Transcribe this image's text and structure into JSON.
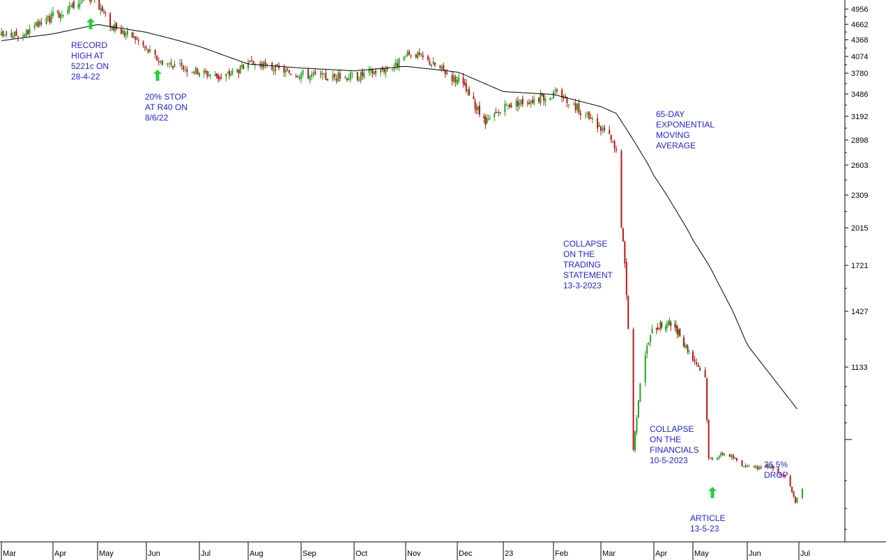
{
  "chart_data": {
    "type": "candlestick",
    "colors": {
      "up": "#1ea31e",
      "down": "#b81414",
      "ema": "#000000",
      "annotation": "#1d22e6",
      "arrow": "#22d13a"
    },
    "y_axis": {
      "ticks": [
        4956,
        4662,
        4368,
        4074,
        3780,
        3486,
        3192,
        2898,
        2603,
        2309,
        2015,
        1721,
        1427,
        1133
      ],
      "tick_labels": [
        "4956",
        "4662",
        "4368",
        "4074",
        "3780",
        "3486",
        "3192",
        "2898",
        "2603",
        "2309",
        "2015",
        "1721",
        "1427",
        "1133"
      ]
    },
    "x_axis": {
      "months": [
        "Mar",
        "Apr",
        "May",
        "Jun",
        "Jul",
        "Aug",
        "Sep",
        "Oct",
        "Nov",
        "Dec",
        "23",
        "Feb",
        "Mar",
        "Apr",
        "May",
        "Jun",
        "Jul"
      ]
    },
    "ema_label": [
      "65-DAY",
      "EXPONENTIAL",
      "MOVING",
      "AVERAGE"
    ],
    "price_path": [
      [
        "2022-03-01",
        4450
      ],
      [
        "2022-03-15",
        4480
      ],
      [
        "2022-04-01",
        4820
      ],
      [
        "2022-04-28",
        5221
      ],
      [
        "2022-05-10",
        4620
      ],
      [
        "2022-05-25",
        4400
      ],
      [
        "2022-06-08",
        4000
      ],
      [
        "2022-06-25",
        3850
      ],
      [
        "2022-07-15",
        3720
      ],
      [
        "2022-08-05",
        3950
      ],
      [
        "2022-08-25",
        3800
      ],
      [
        "2022-09-15",
        3720
      ],
      [
        "2022-10-05",
        3750
      ],
      [
        "2022-10-25",
        3900
      ],
      [
        "2022-11-05",
        4150
      ],
      [
        "2022-11-20",
        3880
      ],
      [
        "2022-12-05",
        3600
      ],
      [
        "2022-12-20",
        3100
      ],
      [
        "2023-01-05",
        3350
      ],
      [
        "2023-01-20",
        3420
      ],
      [
        "2023-02-05",
        3500
      ],
      [
        "2023-02-20",
        3200
      ],
      [
        "2023-03-05",
        2980
      ],
      [
        "2023-03-10",
        2750
      ],
      [
        "2023-03-13",
        2050
      ],
      [
        "2023-03-16",
        1550
      ],
      [
        "2023-03-20",
        700
      ],
      [
        "2023-03-25",
        1150
      ],
      [
        "2023-04-01",
        1350
      ],
      [
        "2023-04-15",
        1360
      ],
      [
        "2023-04-30",
        1200
      ],
      [
        "2023-05-08",
        1080
      ],
      [
        "2023-05-10",
        650
      ],
      [
        "2023-05-20",
        680
      ],
      [
        "2023-06-01",
        600
      ],
      [
        "2023-06-15",
        610
      ],
      [
        "2023-06-25",
        540
      ],
      [
        "2023-06-29",
        420
      ],
      [
        "2023-07-05",
        520
      ]
    ],
    "ema_path": [
      [
        "2022-03-01",
        4350
      ],
      [
        "2022-04-01",
        4480
      ],
      [
        "2022-05-01",
        4660
      ],
      [
        "2022-06-01",
        4510
      ],
      [
        "2022-07-01",
        4250
      ],
      [
        "2022-08-01",
        3940
      ],
      [
        "2022-09-01",
        3870
      ],
      [
        "2022-10-01",
        3820
      ],
      [
        "2022-11-01",
        3900
      ],
      [
        "2022-12-01",
        3800
      ],
      [
        "2023-01-01",
        3520
      ],
      [
        "2023-02-01",
        3480
      ],
      [
        "2023-03-01",
        3320
      ],
      [
        "2023-03-10",
        3230
      ],
      [
        "2023-04-01",
        2500
      ],
      [
        "2023-05-01",
        1920
      ],
      [
        "2023-06-01",
        1250
      ],
      [
        "2023-07-01",
        900
      ]
    ],
    "annotations": [
      {
        "lines": [
          "RECORD",
          "HIGH AT",
          "5221c ON",
          "28-4-22"
        ],
        "arrow": true,
        "date": "2022-04-28"
      },
      {
        "lines": [
          "20% STOP",
          "AT R40 ON",
          "8/6/22"
        ],
        "arrow": true,
        "date": "2022-06-08"
      },
      {
        "lines": [
          "COLLAPSE",
          "ON THE",
          "TRADING",
          "STATEMENT",
          "13-3-2023"
        ],
        "arrow": false,
        "date": "2023-03-13"
      },
      {
        "lines": [
          "COLLAPSE",
          "ON THE",
          "FINANCIALS",
          "10-5-2023"
        ],
        "arrow": false,
        "date": "2023-05-10"
      },
      {
        "lines": [
          "ARTICLE",
          "13-5-23"
        ],
        "arrow": true,
        "date": "2023-05-13"
      },
      {
        "lines": [
          "26,5%",
          "DROP"
        ],
        "arrow": false,
        "date": "2023-06-15"
      }
    ]
  }
}
